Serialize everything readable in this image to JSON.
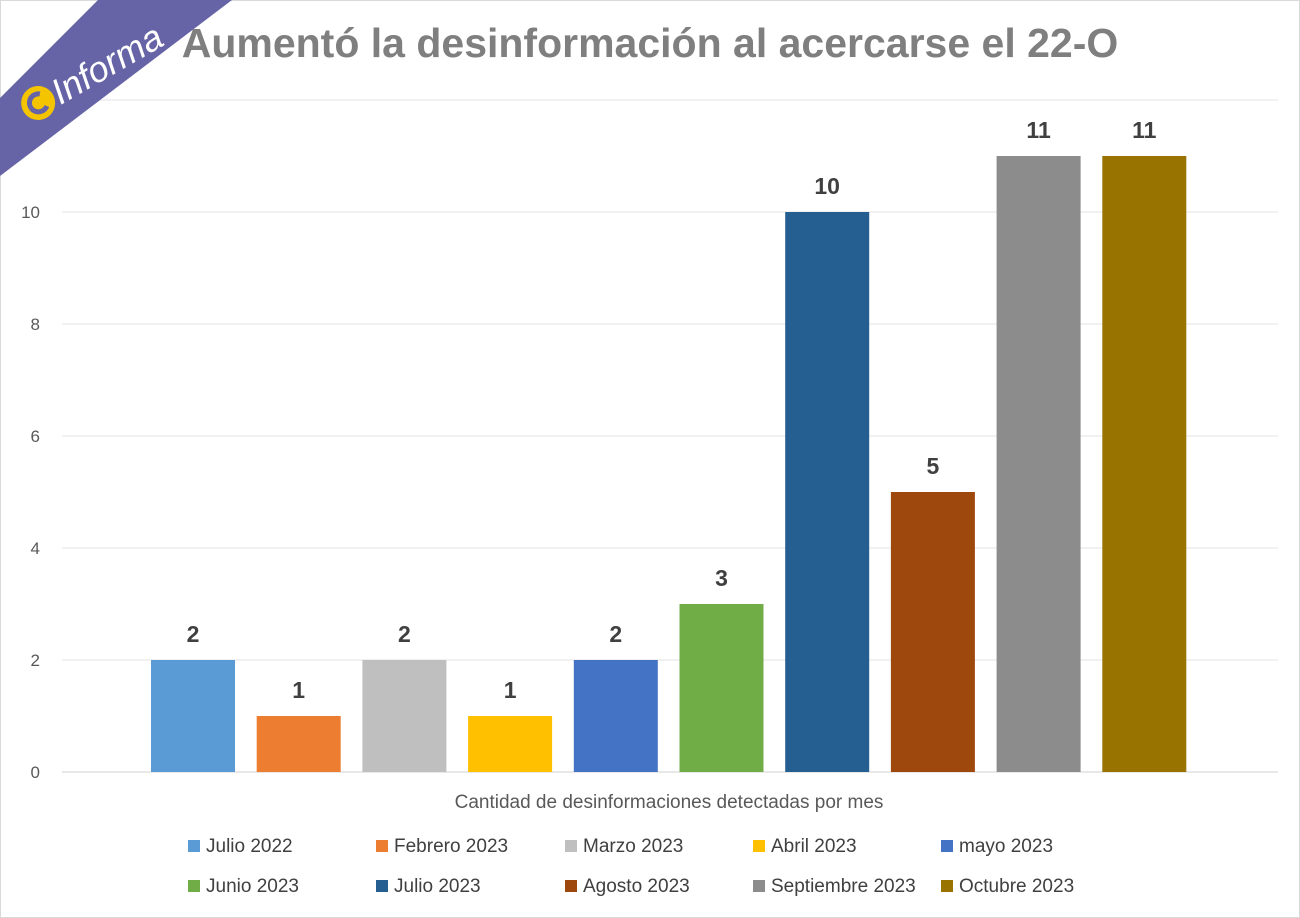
{
  "brand": {
    "name": "Informa",
    "ribbon_color": "#6664a6",
    "logo_color": "#f5c400"
  },
  "chart_data": {
    "type": "bar",
    "title": "Aumentó la desinformación al acercarse el 22-O",
    "xlabel": "Cantidad de desinformaciones detectadas por mes",
    "ylabel": "",
    "ylim": [
      0,
      12
    ],
    "yticks": [
      0,
      2,
      4,
      6,
      8,
      10
    ],
    "grid": true,
    "legend_position": "bottom",
    "categories": [
      "Julio 2022",
      "Febrero 2023",
      "Marzo 2023",
      "Abril 2023",
      "mayo 2023",
      "Junio 2023",
      "Julio 2023",
      "Agosto 2023",
      "Septiembre 2023",
      "Octubre 2023"
    ],
    "values": [
      2,
      1,
      2,
      1,
      2,
      3,
      10,
      5,
      11,
      11
    ],
    "colors": [
      "#5b9bd5",
      "#ed7d31",
      "#bfbfbf",
      "#ffc000",
      "#4472c4",
      "#70ad47",
      "#255e91",
      "#9e480e",
      "#8c8c8c",
      "#997300"
    ]
  }
}
